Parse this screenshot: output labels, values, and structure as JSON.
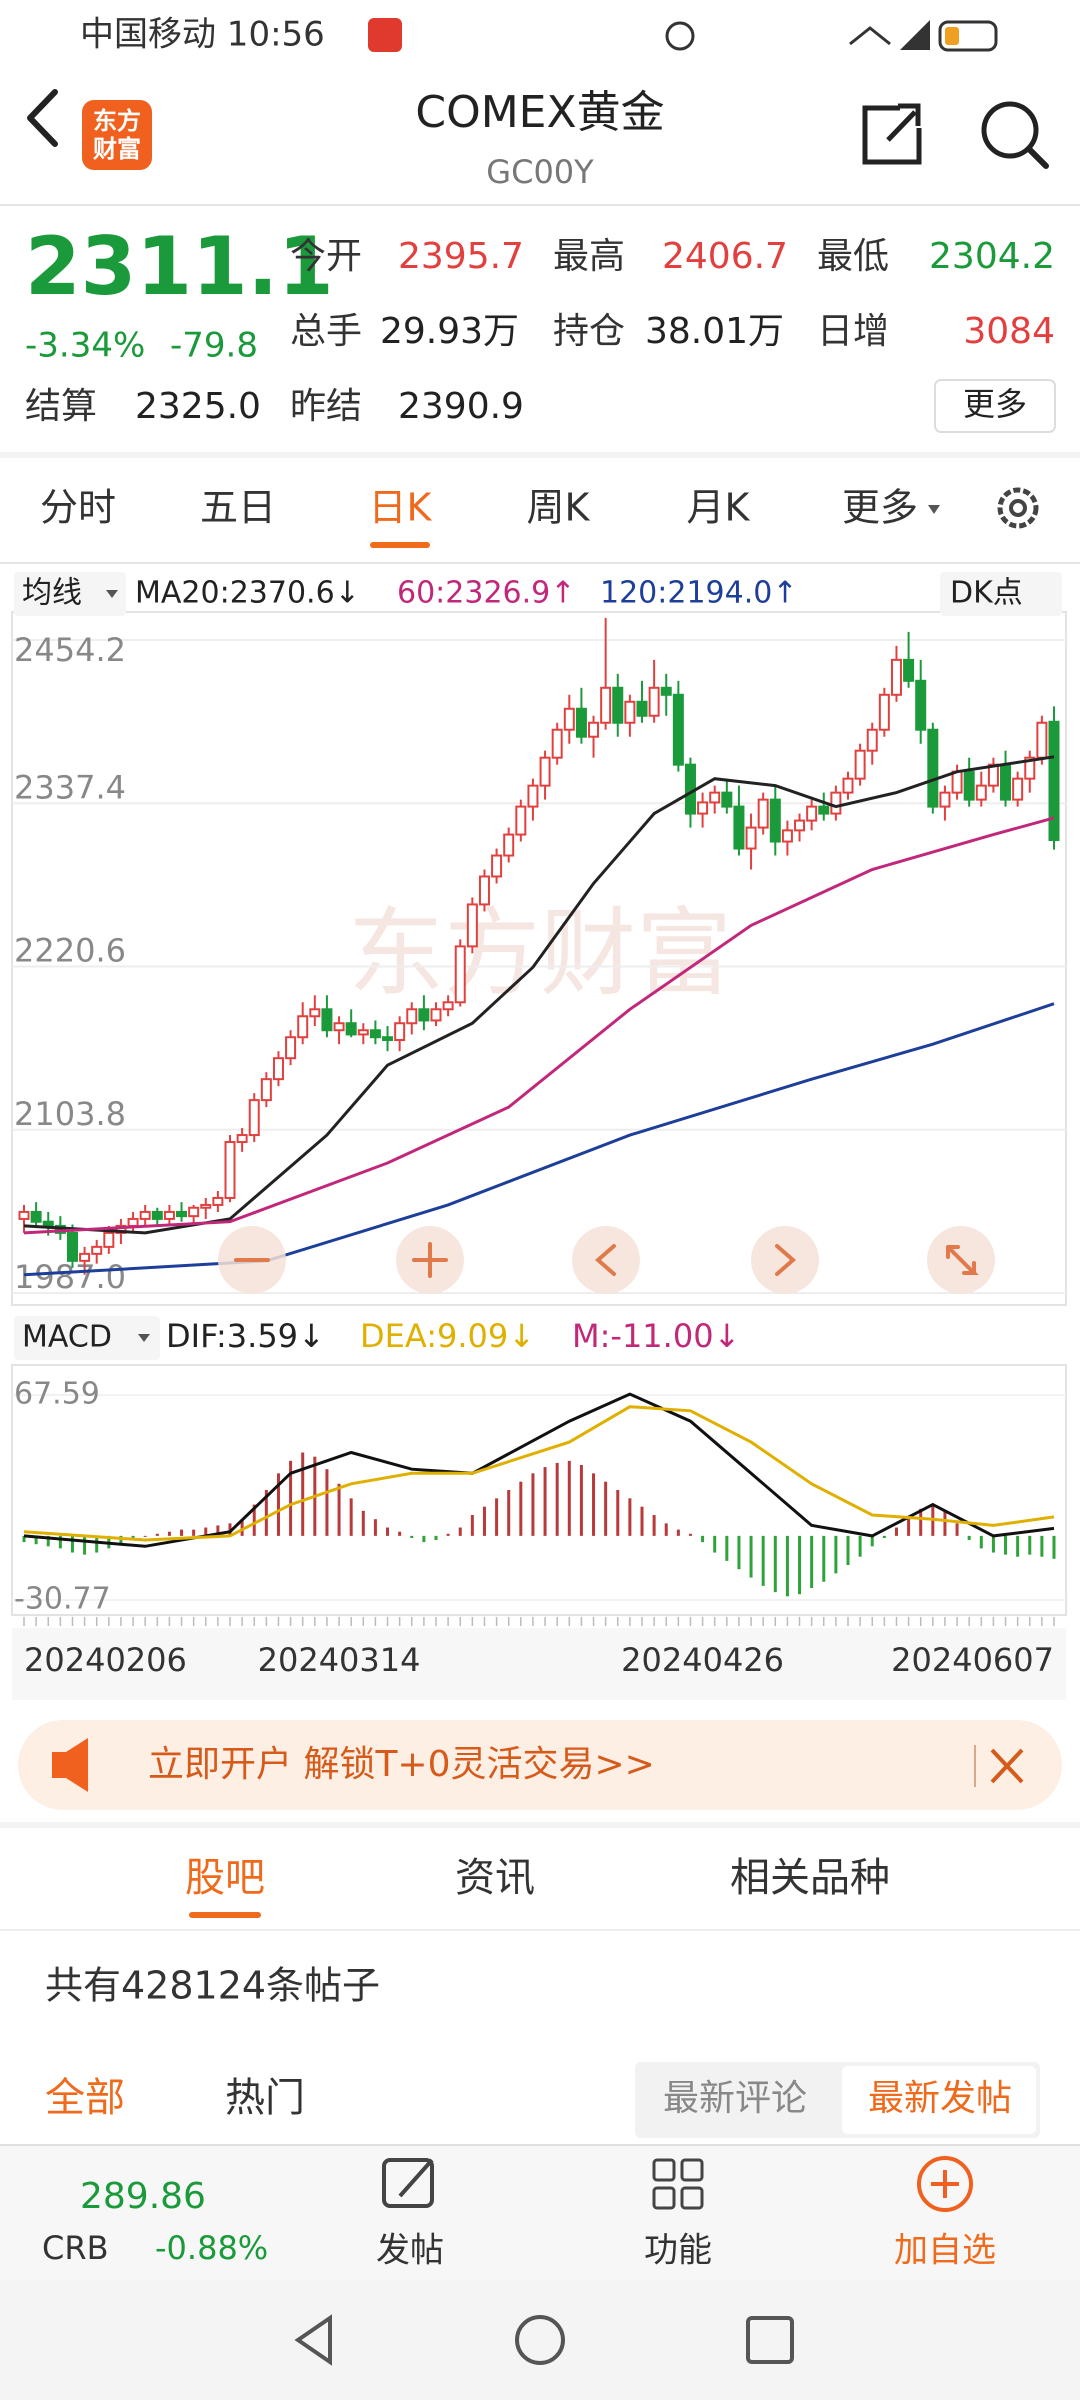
{
  "status_bar": {
    "carrier_time": "中国移动 10:56"
  },
  "header": {
    "logo": [
      "东方",
      "财富"
    ],
    "title": "COMEX黄金",
    "code": "GC00Y"
  },
  "quote": {
    "price": "2311.1",
    "change_pct": "-3.34%",
    "change": "-79.8",
    "fields": [
      {
        "label": "今开",
        "value": "2395.7",
        "tone": "up"
      },
      {
        "label": "最高",
        "value": "2406.7",
        "tone": "up"
      },
      {
        "label": "最低",
        "value": "2304.2",
        "tone": "down"
      },
      {
        "label": "总手",
        "value": "29.93万",
        "tone": "flat"
      },
      {
        "label": "持仓",
        "value": "38.01万",
        "tone": "flat"
      },
      {
        "label": "日增",
        "value": "3084",
        "tone": "up"
      },
      {
        "label": "结算",
        "value": "2325.0",
        "tone": "flat"
      },
      {
        "label": "昨结",
        "value": "2390.9",
        "tone": "flat"
      }
    ],
    "more": "更多"
  },
  "period_tabs": {
    "items": [
      "分时",
      "五日",
      "日K",
      "周K",
      "月K",
      "更多"
    ],
    "active": 2
  },
  "ma_legend": {
    "toggle": "均线",
    "ma20": "MA20:2370.6↓",
    "ma60": "60:2326.9↑",
    "ma120": "120:2194.0↑",
    "dk": "DK点"
  },
  "macd_legend": {
    "toggle": "MACD",
    "dif": "DIF:3.59↓",
    "dea": "DEA:9.09↓",
    "m": "M:-11.00↓"
  },
  "chart_data": [
    {
      "type": "candlestick",
      "watermark": "东方财富",
      "up_color": "#e2403f",
      "down_color": "#1a9a3a",
      "ylim": [
        1987,
        2454.2
      ],
      "yticks": [
        2454.2,
        2337.4,
        2220.6,
        2103.8,
        {
          "value": 1987,
          "label": "1987.0"
        }
      ],
      "grid": true,
      "x_labels": [
        {
          "value": 0,
          "label": "20240206"
        },
        {
          "value": 26,
          "label": "20240314"
        },
        {
          "value": 56,
          "label": "20240426"
        },
        {
          "value": 85,
          "label": "20240607"
        }
      ],
      "ohlc": [
        [
          2040,
          2050,
          2030,
          2045
        ],
        [
          2045,
          2052,
          2035,
          2038
        ],
        [
          2038,
          2045,
          2028,
          2035
        ],
        [
          2035,
          2042,
          2025,
          2030
        ],
        [
          2030,
          2036,
          2005,
          2010
        ],
        [
          2010,
          2020,
          2000,
          2015
        ],
        [
          2015,
          2025,
          2008,
          2020
        ],
        [
          2020,
          2035,
          2015,
          2030
        ],
        [
          2030,
          2040,
          2022,
          2035
        ],
        [
          2035,
          2045,
          2030,
          2040
        ],
        [
          2040,
          2050,
          2035,
          2045
        ],
        [
          2045,
          2048,
          2035,
          2040
        ],
        [
          2040,
          2050,
          2036,
          2045
        ],
        [
          2045,
          2052,
          2038,
          2042
        ],
        [
          2042,
          2050,
          2036,
          2048
        ],
        [
          2048,
          2055,
          2040,
          2050
        ],
        [
          2050,
          2060,
          2045,
          2055
        ],
        [
          2055,
          2100,
          2052,
          2095
        ],
        [
          2095,
          2105,
          2088,
          2100
        ],
        [
          2100,
          2130,
          2095,
          2125
        ],
        [
          2125,
          2145,
          2120,
          2140
        ],
        [
          2140,
          2160,
          2135,
          2155
        ],
        [
          2155,
          2175,
          2150,
          2170
        ],
        [
          2170,
          2195,
          2165,
          2185
        ],
        [
          2185,
          2200,
          2178,
          2190
        ],
        [
          2190,
          2200,
          2170,
          2175
        ],
        [
          2175,
          2185,
          2165,
          2180
        ],
        [
          2180,
          2190,
          2170,
          2172
        ],
        [
          2172,
          2180,
          2165,
          2175
        ],
        [
          2175,
          2182,
          2165,
          2170
        ],
        [
          2170,
          2178,
          2160,
          2168
        ],
        [
          2168,
          2185,
          2160,
          2180
        ],
        [
          2180,
          2195,
          2172,
          2190
        ],
        [
          2190,
          2200,
          2175,
          2182
        ],
        [
          2182,
          2195,
          2178,
          2190
        ],
        [
          2190,
          2200,
          2185,
          2195
        ],
        [
          2195,
          2240,
          2192,
          2235
        ],
        [
          2235,
          2270,
          2230,
          2265
        ],
        [
          2265,
          2290,
          2260,
          2285
        ],
        [
          2285,
          2305,
          2280,
          2300
        ],
        [
          2300,
          2320,
          2295,
          2315
        ],
        [
          2315,
          2340,
          2310,
          2335
        ],
        [
          2335,
          2355,
          2325,
          2350
        ],
        [
          2350,
          2375,
          2340,
          2370
        ],
        [
          2370,
          2395,
          2365,
          2390
        ],
        [
          2390,
          2415,
          2380,
          2405
        ],
        [
          2405,
          2420,
          2380,
          2385
        ],
        [
          2385,
          2400,
          2370,
          2395
        ],
        [
          2395,
          2470,
          2390,
          2420
        ],
        [
          2420,
          2430,
          2385,
          2395
        ],
        [
          2395,
          2415,
          2385,
          2410
        ],
        [
          2410,
          2425,
          2395,
          2400
        ],
        [
          2400,
          2440,
          2395,
          2420
        ],
        [
          2420,
          2430,
          2400,
          2415
        ],
        [
          2415,
          2425,
          2360,
          2365
        ],
        [
          2365,
          2370,
          2320,
          2330
        ],
        [
          2330,
          2345,
          2320,
          2338
        ],
        [
          2338,
          2350,
          2330,
          2345
        ],
        [
          2345,
          2355,
          2330,
          2335
        ],
        [
          2335,
          2350,
          2300,
          2305
        ],
        [
          2305,
          2330,
          2290,
          2320
        ],
        [
          2320,
          2345,
          2315,
          2340
        ],
        [
          2340,
          2350,
          2300,
          2310
        ],
        [
          2310,
          2325,
          2300,
          2318
        ],
        [
          2318,
          2330,
          2310,
          2325
        ],
        [
          2325,
          2340,
          2318,
          2335
        ],
        [
          2335,
          2345,
          2325,
          2330
        ],
        [
          2330,
          2350,
          2325,
          2345
        ],
        [
          2345,
          2360,
          2340,
          2355
        ],
        [
          2355,
          2380,
          2350,
          2375
        ],
        [
          2375,
          2395,
          2365,
          2390
        ],
        [
          2390,
          2420,
          2385,
          2415
        ],
        [
          2415,
          2450,
          2410,
          2440
        ],
        [
          2440,
          2460,
          2420,
          2425
        ],
        [
          2425,
          2440,
          2380,
          2390
        ],
        [
          2390,
          2395,
          2330,
          2335
        ],
        [
          2335,
          2350,
          2325,
          2345
        ],
        [
          2345,
          2365,
          2340,
          2360
        ],
        [
          2360,
          2370,
          2335,
          2340
        ],
        [
          2340,
          2360,
          2335,
          2350
        ],
        [
          2350,
          2370,
          2345,
          2365
        ],
        [
          2365,
          2375,
          2335,
          2340
        ],
        [
          2340,
          2360,
          2335,
          2355
        ],
        [
          2355,
          2375,
          2345,
          2370
        ],
        [
          2370,
          2400,
          2365,
          2395
        ],
        [
          2395.7,
          2406.7,
          2304.2,
          2311.1
        ]
      ],
      "ma_lines": [
        {
          "color": "#222222",
          "x": [
            0,
            10,
            17,
            25,
            30,
            37,
            42,
            47,
            52,
            57,
            62,
            67,
            72,
            77,
            85
          ],
          "values": [
            2035,
            2030,
            2040,
            2100,
            2150,
            2180,
            2220,
            2280,
            2330,
            2355,
            2350,
            2335,
            2345,
            2360,
            2370.6
          ]
        },
        {
          "color": "#c2287a",
          "x": [
            0,
            17,
            30,
            40,
            50,
            60,
            70,
            80,
            85
          ],
          "values": [
            2030,
            2038,
            2080,
            2120,
            2190,
            2250,
            2290,
            2315,
            2326.9
          ]
        },
        {
          "color": "#1d3f9a",
          "x": [
            0,
            20,
            35,
            50,
            65,
            75,
            85
          ],
          "values": [
            2000,
            2010,
            2050,
            2100,
            2140,
            2165,
            2194.0
          ]
        }
      ]
    },
    {
      "type": "macd",
      "up_color": "#b83a3a",
      "down_color": "#2ea33a",
      "ylim": [
        -30.77,
        67.59
      ],
      "yticks": [
        67.59,
        -30.77
      ],
      "histogram": [
        -3,
        -4,
        -5,
        -6,
        -8,
        -9,
        -8,
        -6,
        -4,
        -2,
        0,
        1,
        2,
        3,
        3,
        4,
        5,
        6,
        8,
        15,
        22,
        30,
        36,
        40,
        38,
        32,
        25,
        18,
        12,
        8,
        4,
        2,
        -1,
        -3,
        -2,
        1,
        4,
        10,
        14,
        18,
        22,
        26,
        30,
        33,
        35,
        36,
        34,
        30,
        26,
        22,
        18,
        14,
        10,
        6,
        3,
        1,
        -3,
        -8,
        -12,
        -16,
        -20,
        -24,
        -27,
        -29,
        -28,
        -25,
        -22,
        -18,
        -14,
        -10,
        -5,
        -1,
        4,
        9,
        13,
        15,
        12,
        6,
        -2,
        -6,
        -8,
        -9,
        -10,
        -9,
        -10,
        -11
      ],
      "dif": {
        "color": "#111111",
        "x": [
          0,
          10,
          17,
          22,
          27,
          32,
          37,
          45,
          50,
          55,
          60,
          65,
          70,
          75,
          80,
          85
        ],
        "values": [
          0,
          -5,
          2,
          30,
          40,
          32,
          30,
          55,
          68,
          55,
          30,
          5,
          0,
          15,
          0,
          3.59
        ]
      },
      "dea": {
        "color": "#e0b000",
        "x": [
          0,
          10,
          17,
          22,
          27,
          32,
          37,
          45,
          50,
          55,
          60,
          65,
          70,
          75,
          80,
          85
        ],
        "values": [
          2,
          -2,
          0,
          15,
          25,
          30,
          30,
          45,
          62,
          60,
          45,
          25,
          10,
          8,
          5,
          9.09
        ]
      }
    }
  ],
  "banner": "立即开户 解锁T+0灵活交易>>",
  "content_tabs": {
    "items": [
      "股吧",
      "资讯",
      "相关品种"
    ],
    "active": 0
  },
  "post_count": "共有428124条帖子",
  "filters": {
    "left": [
      "全部",
      "热门"
    ],
    "right": [
      "最新评论",
      "最新发帖"
    ]
  },
  "bottom_bar": {
    "index_value": "289.86",
    "index_name": "CRB",
    "index_change": "-0.88%",
    "actions": [
      "发帖",
      "功能",
      "加自选"
    ]
  }
}
